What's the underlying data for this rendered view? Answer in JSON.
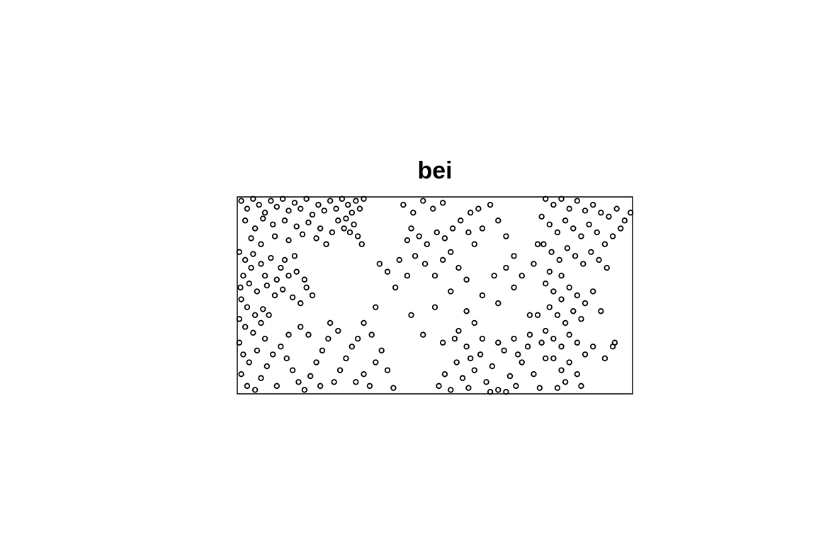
{
  "chart_data": {
    "type": "scatter",
    "title": "bei",
    "color": "#000000",
    "xlim": [
      0,
      1000
    ],
    "ylim": [
      0,
      500
    ],
    "x": [
      10,
      25,
      40,
      55,
      70,
      85,
      100,
      115,
      130,
      145,
      160,
      175,
      190,
      205,
      220,
      235,
      250,
      265,
      280,
      290,
      300,
      310,
      320,
      275,
      295,
      285,
      305,
      315,
      270,
      255,
      20,
      45,
      65,
      90,
      120,
      150,
      180,
      210,
      240,
      35,
      60,
      95,
      130,
      165,
      200,
      225,
      5,
      20,
      40,
      60,
      85,
      110,
      130,
      150,
      170,
      15,
      30,
      50,
      75,
      95,
      115,
      140,
      160,
      10,
      25,
      45,
      65,
      5,
      20,
      40,
      60,
      80,
      100,
      120,
      145,
      175,
      190,
      8,
      35,
      70,
      5,
      15,
      30,
      10,
      25,
      45,
      60,
      75,
      90,
      110,
      125,
      140,
      155,
      170,
      185,
      200,
      215,
      230,
      180,
      160,
      245,
      260,
      275,
      290,
      305,
      320,
      335,
      350,
      365,
      380,
      395,
      255,
      235,
      300,
      70,
      50,
      100,
      130,
      210,
      340,
      420,
      445,
      470,
      495,
      520,
      440,
      460,
      480,
      505,
      525,
      545,
      565,
      585,
      600,
      620,
      450,
      475,
      500,
      520,
      540,
      560,
      580,
      430,
      410,
      590,
      610,
      640,
      660,
      680,
      700,
      430,
      400,
      440,
      500,
      540,
      580,
      620,
      660,
      700,
      720,
      680,
      750,
      760,
      650,
      560,
      470,
      520,
      600,
      740,
      380,
      360,
      350,
      320,
      510,
      525,
      540,
      555,
      570,
      585,
      600,
      615,
      630,
      645,
      660,
      675,
      690,
      705,
      720,
      735,
      750,
      765,
      780,
      700,
      740,
      620,
      580,
      640,
      680,
      710,
      660,
      590,
      550,
      770,
      780,
      800,
      820,
      840,
      860,
      880,
      900,
      920,
      940,
      960,
      980,
      995,
      770,
      790,
      810,
      830,
      850,
      870,
      890,
      910,
      930,
      950,
      970,
      775,
      795,
      815,
      835,
      855,
      875,
      895,
      915,
      935,
      790,
      820,
      780,
      800,
      820,
      840,
      860,
      880,
      900,
      790,
      810,
      830,
      850,
      870,
      920,
      780,
      800,
      820,
      840,
      860,
      880,
      800,
      820,
      840,
      860,
      830,
      810,
      870,
      950,
      955,
      930,
      900,
      760
    ],
    "values": [
      490,
      470,
      495,
      480,
      460,
      490,
      475,
      495,
      465,
      485,
      470,
      495,
      455,
      480,
      465,
      490,
      470,
      495,
      480,
      460,
      490,
      470,
      495,
      445,
      430,
      410,
      400,
      380,
      420,
      440,
      440,
      420,
      445,
      430,
      440,
      425,
      435,
      420,
      410,
      395,
      380,
      400,
      390,
      405,
      395,
      380,
      360,
      340,
      355,
      330,
      345,
      320,
      300,
      310,
      290,
      300,
      280,
      260,
      275,
      250,
      265,
      245,
      230,
      240,
      220,
      200,
      215,
      190,
      170,
      155,
      180,
      200,
      290,
      340,
      350,
      270,
      250,
      270,
      320,
      300,
      130,
      100,
      80,
      50,
      20,
      10,
      40,
      70,
      100,
      120,
      90,
      60,
      30,
      10,
      45,
      80,
      110,
      140,
      150,
      170,
      30,
      60,
      90,
      120,
      140,
      50,
      20,
      80,
      110,
      60,
      15,
      160,
      180,
      30,
      140,
      110,
      20,
      150,
      20,
      150,
      480,
      460,
      490,
      470,
      485,
      420,
      400,
      380,
      410,
      395,
      420,
      440,
      410,
      380,
      420,
      350,
      330,
      300,
      340,
      360,
      320,
      290,
      390,
      340,
      460,
      470,
      480,
      440,
      400,
      350,
      300,
      270,
      200,
      220,
      260,
      210,
      250,
      230,
      270,
      300,
      320,
      330,
      380,
      300,
      160,
      150,
      130,
      180,
      200,
      310,
      330,
      220,
      180,
      20,
      50,
      10,
      80,
      40,
      15,
      60,
      100,
      30,
      70,
      10,
      110,
      45,
      20,
      80,
      120,
      50,
      15,
      90,
      140,
      150,
      140,
      120,
      5,
      5,
      100,
      130,
      90,
      140,
      130,
      495,
      480,
      495,
      470,
      490,
      465,
      480,
      460,
      450,
      470,
      440,
      460,
      450,
      430,
      410,
      440,
      420,
      400,
      430,
      410,
      380,
      400,
      420,
      380,
      360,
      340,
      370,
      350,
      330,
      360,
      340,
      320,
      310,
      300,
      280,
      260,
      240,
      270,
      250,
      230,
      260,
      220,
      200,
      180,
      210,
      190,
      210,
      160,
      140,
      120,
      150,
      130,
      100,
      90,
      60,
      80,
      50,
      30,
      15,
      20,
      120,
      130,
      90,
      120,
      200
    ]
  }
}
